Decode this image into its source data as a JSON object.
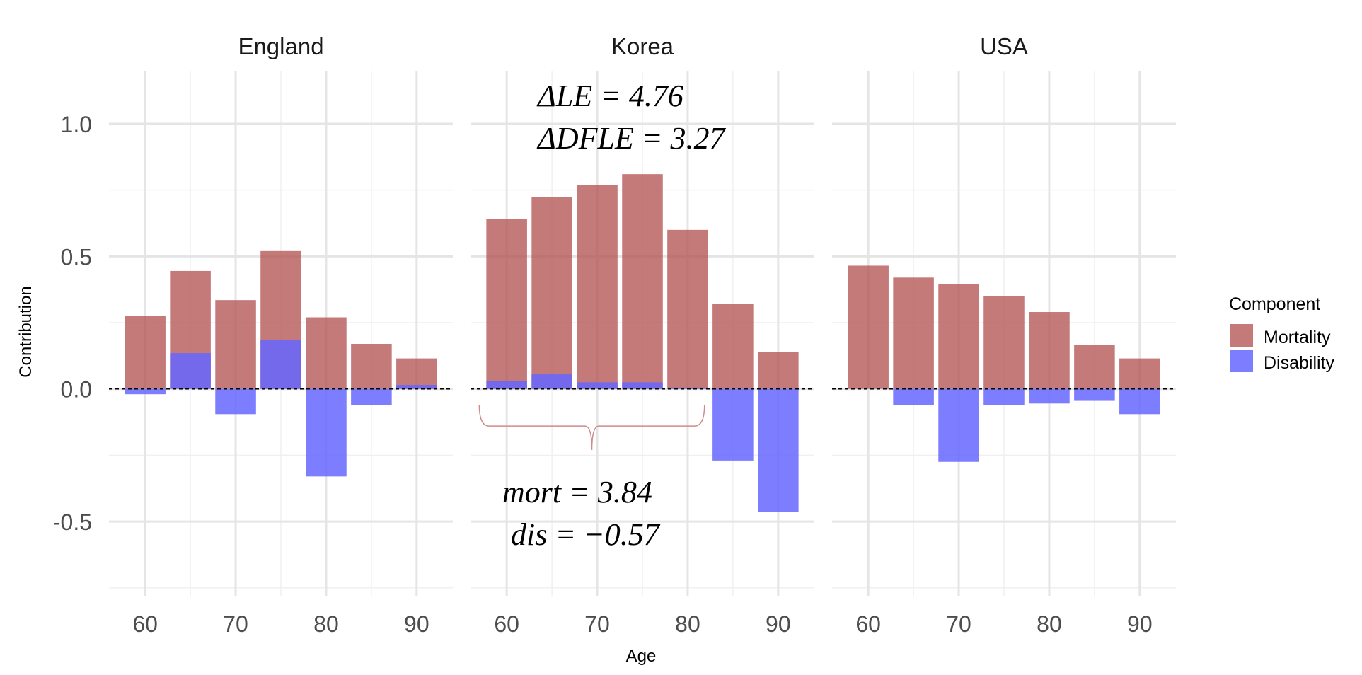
{
  "chart_data": {
    "type": "bar",
    "stacking": "diverging",
    "facets": [
      "England",
      "Korea",
      "USA"
    ],
    "xlabel": "Age",
    "ylabel": "Contribution",
    "x_ticks": [
      60,
      70,
      80,
      90
    ],
    "y_ticks": [
      -0.5,
      0.0,
      0.5,
      1.0
    ],
    "y_tick_labels": [
      "-0.5",
      "0.0",
      "0.5",
      "1.0"
    ],
    "x_tick_labels": [
      "60",
      "70",
      "80",
      "90"
    ],
    "xlim": [
      56,
      94
    ],
    "ylim": [
      -0.78,
      1.2
    ],
    "grid": true,
    "reference_line": 0.0,
    "ages": [
      60,
      65,
      70,
      75,
      80,
      85,
      90
    ],
    "legend": {
      "title": "Component",
      "position": "right",
      "items": [
        {
          "name": "Mortality",
          "color": "#b55555"
        },
        {
          "name": "Disability",
          "color": "#6666ff"
        }
      ]
    },
    "series": [
      {
        "facet": "England",
        "mortality": [
          0.275,
          0.445,
          0.335,
          0.52,
          0.27,
          0.17,
          0.115
        ],
        "disability": [
          -0.02,
          0.135,
          -0.095,
          0.185,
          -0.33,
          -0.06,
          0.015
        ]
      },
      {
        "facet": "Korea",
        "mortality": [
          0.64,
          0.725,
          0.77,
          0.81,
          0.6,
          0.32,
          0.14
        ],
        "disability": [
          0.03,
          0.055,
          0.025,
          0.025,
          0.005,
          -0.27,
          -0.465
        ]
      },
      {
        "facet": "USA",
        "mortality": [
          0.465,
          0.42,
          0.395,
          0.35,
          0.29,
          0.165,
          0.115
        ],
        "disability": [
          0.0,
          -0.06,
          -0.275,
          -0.06,
          -0.055,
          -0.045,
          -0.095
        ]
      }
    ],
    "annotations": {
      "facet": "Korea",
      "delta_le": "ΔLE = 4.76",
      "delta_dfle": "ΔDFLE = 3.27",
      "mort": "mort = 3.84",
      "dis": "dis = −0.57"
    }
  }
}
